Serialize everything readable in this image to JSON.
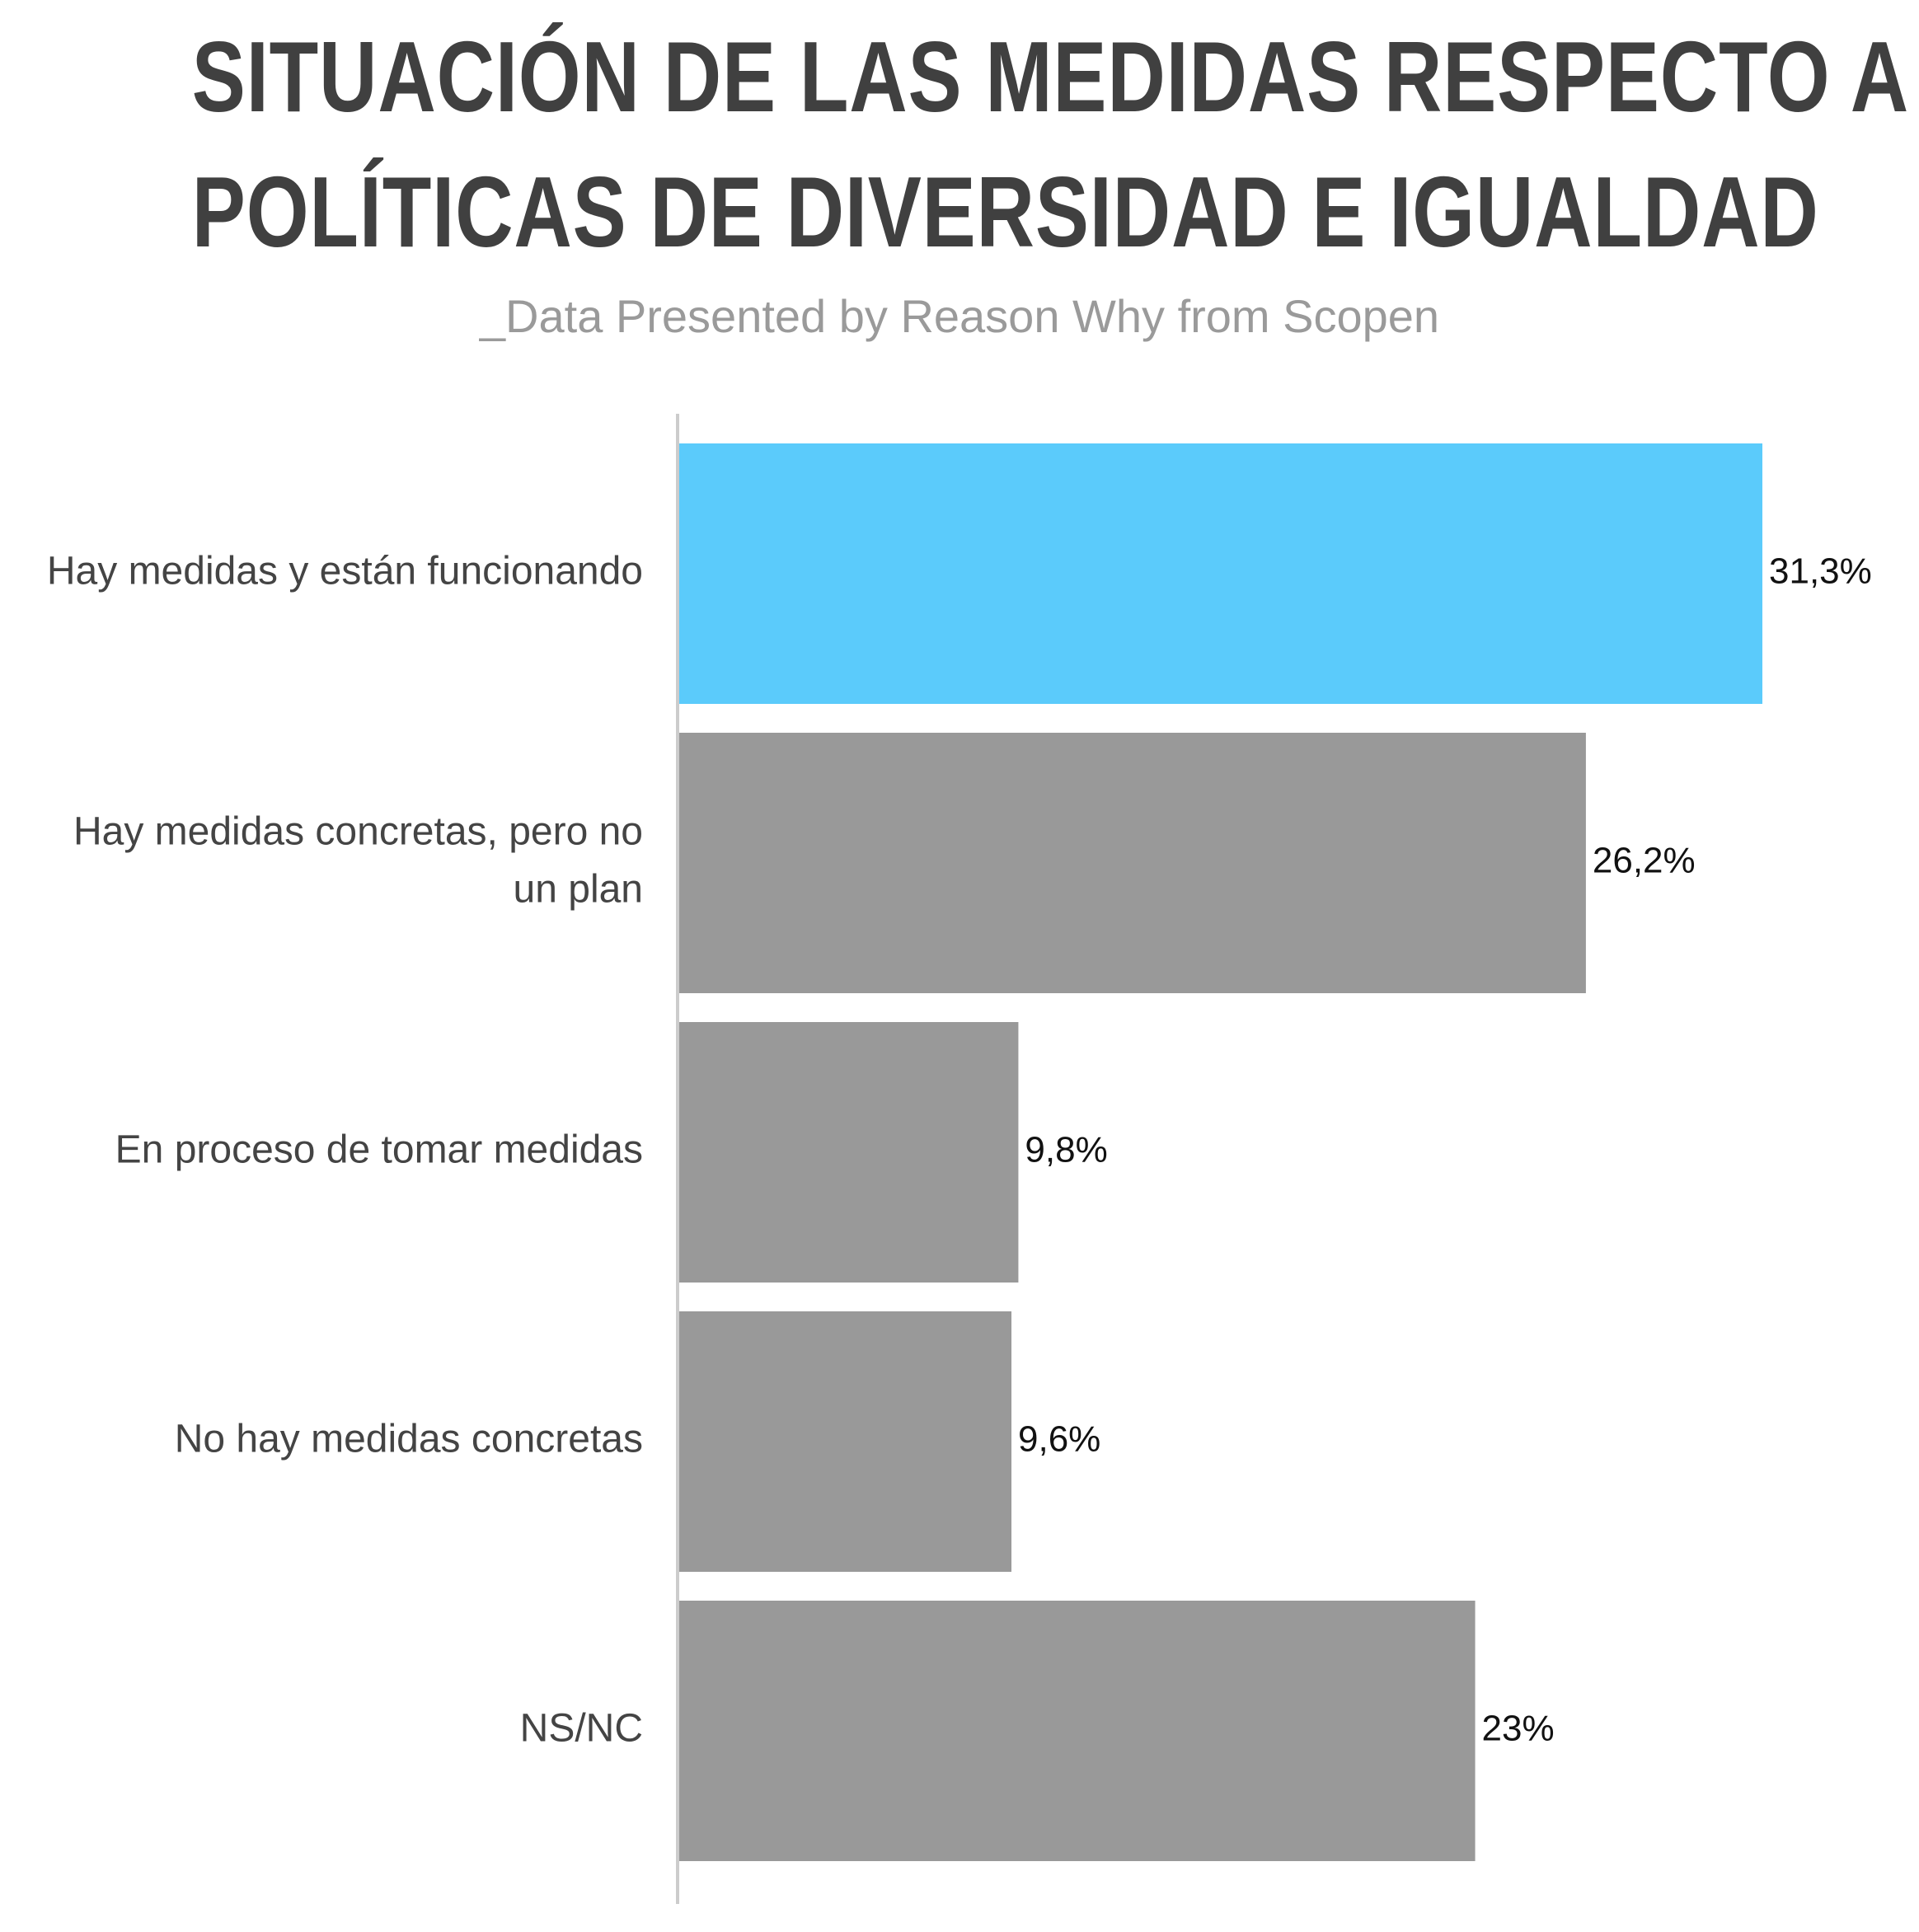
{
  "title_lines": [
    "SITUACIÓN DE LAS MEDIDAS RESPECTO A",
    "POLÍTICAS DE DIVERSIDAD E IGUALDAD"
  ],
  "subtitle": "_Data Presented by Reason Why from Scopen",
  "colors": {
    "highlight": "#5bcbfb",
    "bar": "#999999",
    "axis": "#cccccc",
    "title": "#404040"
  },
  "chart_data": {
    "type": "bar",
    "orientation": "horizontal",
    "title": "SITUACIÓN DE LAS MEDIDAS RESPECTO A POLÍTICAS DE DIVERSIDAD E IGUALDAD",
    "subtitle": "_Data Presented by Reason Why from Scopen",
    "categories": [
      [
        "Hay medidas y están funcionando"
      ],
      [
        "Hay medidas concretas, pero no",
        "un plan"
      ],
      [
        "En proceso de tomar medidas"
      ],
      [
        "No hay medidas concretas"
      ],
      [
        "NS/NC"
      ]
    ],
    "values": [
      31.3,
      26.2,
      9.8,
      9.6,
      23
    ],
    "value_labels": [
      "31,3%",
      "26,2%",
      "9,8%",
      "9,6%",
      "23%"
    ],
    "highlight_index": 0,
    "xlim": [
      0,
      31.3
    ],
    "unit": "%",
    "grid": false,
    "legend": "none"
  }
}
